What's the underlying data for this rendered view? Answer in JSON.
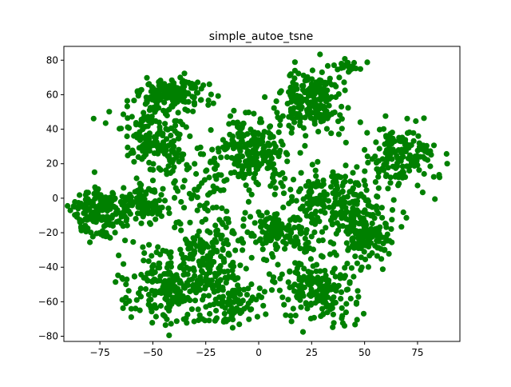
{
  "chart_data": {
    "type": "scatter",
    "title": "simple_autoe_tsne",
    "xlabel": "",
    "ylabel": "",
    "xlim": [
      -92,
      95
    ],
    "ylim": [
      -83,
      88
    ],
    "xticks": [
      -75,
      -50,
      -25,
      0,
      25,
      50,
      75
    ],
    "yticks": [
      -80,
      -60,
      -40,
      -20,
      0,
      20,
      40,
      60,
      80
    ],
    "xtick_labels": [
      "−75",
      "−50",
      "−25",
      "0",
      "25",
      "50",
      "75"
    ],
    "ytick_labels": [
      "−80",
      "−60",
      "−40",
      "−20",
      "0",
      "20",
      "40",
      "60",
      "80"
    ],
    "grid": false,
    "legend": "none",
    "point_color": "#008000",
    "clusters": [
      {
        "cx": -40,
        "cy": 60,
        "sx": 8,
        "sy": 5,
        "n": 160
      },
      {
        "cx": -50,
        "cy": 33,
        "sx": 7,
        "sy": 9,
        "n": 160
      },
      {
        "cx": -75,
        "cy": -8,
        "sx": 7,
        "sy": 7,
        "n": 170
      },
      {
        "cx": -55,
        "cy": -3,
        "sx": 6,
        "sy": 6,
        "n": 110
      },
      {
        "cx": -3,
        "cy": 27,
        "sx": 8,
        "sy": 10,
        "n": 230
      },
      {
        "cx": 27,
        "cy": 58,
        "sx": 7,
        "sy": 9,
        "n": 190
      },
      {
        "cx": 42,
        "cy": 77,
        "sx": 3,
        "sy": 2,
        "n": 25
      },
      {
        "cx": 66,
        "cy": 25,
        "sx": 8,
        "sy": 10,
        "n": 160
      },
      {
        "cx": 35,
        "cy": 0,
        "sx": 10,
        "sy": 9,
        "n": 190
      },
      {
        "cx": 50,
        "cy": -22,
        "sx": 7,
        "sy": 10,
        "n": 150
      },
      {
        "cx": 10,
        "cy": -20,
        "sx": 9,
        "sy": 7,
        "n": 140
      },
      {
        "cx": 28,
        "cy": -52,
        "sx": 9,
        "sy": 9,
        "n": 190
      },
      {
        "cx": -42,
        "cy": -50,
        "sx": 10,
        "sy": 11,
        "n": 230
      },
      {
        "cx": -22,
        "cy": -35,
        "sx": 8,
        "sy": 14,
        "n": 150
      },
      {
        "cx": -12,
        "cy": -60,
        "sx": 7,
        "sy": 7,
        "n": 90
      },
      {
        "cx": -25,
        "cy": 10,
        "sx": 12,
        "sy": 12,
        "n": 70
      }
    ],
    "outliers": [
      {
        "x": 89,
        "y": 20
      },
      {
        "x": -87,
        "y": -5
      },
      {
        "x": 5,
        "y": -44
      },
      {
        "x": -40,
        "y": 18
      },
      {
        "x": 48,
        "y": 44
      },
      {
        "x": 15,
        "y": 5
      }
    ]
  }
}
